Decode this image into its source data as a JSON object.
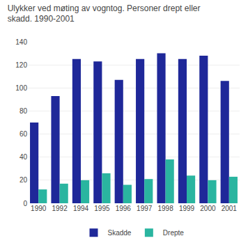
{
  "chart_data": {
    "type": "bar",
    "title": "Ulykker ved møting av vogntog. Personer drept eller\nskadd. 1990-2001",
    "categories": [
      "1990",
      "1992",
      "1994",
      "1995",
      "1996",
      "1997",
      "1998",
      "1999",
      "2000",
      "2001"
    ],
    "series": [
      {
        "name": "Skadde",
        "color": "#1f2899",
        "values": [
          70,
          93,
          125,
          123,
          107,
          125,
          130,
          125,
          128,
          106
        ]
      },
      {
        "name": "Drepte",
        "color": "#2ab5a0",
        "values": [
          12,
          17,
          20,
          26,
          16,
          21,
          38,
          24,
          20,
          23
        ]
      }
    ],
    "ylim": [
      0,
      140
    ],
    "yticks": [
      0,
      20,
      40,
      60,
      80,
      100,
      120,
      140
    ],
    "grid": true,
    "legend": "bottom"
  }
}
